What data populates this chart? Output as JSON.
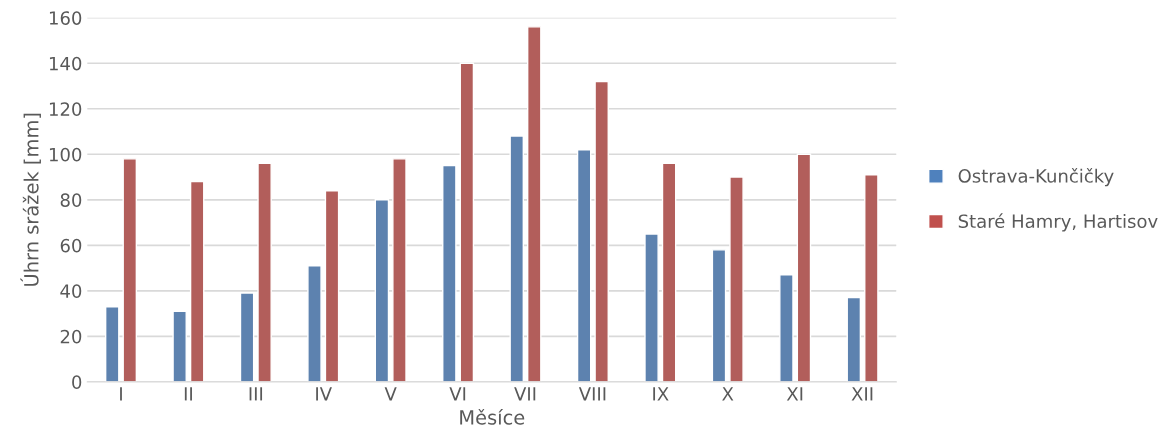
{
  "chart_data": {
    "type": "bar",
    "xlabel": "Měsíce",
    "ylabel": "Úhrn srážek [mm]",
    "categories": [
      "I",
      "II",
      "III",
      "IV",
      "V",
      "VI",
      "VII",
      "VIII",
      "IX",
      "X",
      "XI",
      "XII"
    ],
    "series": [
      {
        "name": "Ostrava-Kunčičky",
        "color": "#4f81bd",
        "values": [
          33,
          31,
          39,
          51,
          80,
          95,
          108,
          102,
          65,
          58,
          47,
          37
        ]
      },
      {
        "name": "Staré Hamry, Hartisov",
        "color": "#c0504d",
        "values": [
          98,
          88,
          96,
          84,
          98,
          140,
          156,
          132,
          96,
          90,
          100,
          91
        ]
      }
    ],
    "ylim": [
      0,
      160
    ],
    "yticks": [
      0,
      20,
      40,
      60,
      80,
      100,
      120,
      140,
      160
    ],
    "grid": "y",
    "legend": "right"
  }
}
